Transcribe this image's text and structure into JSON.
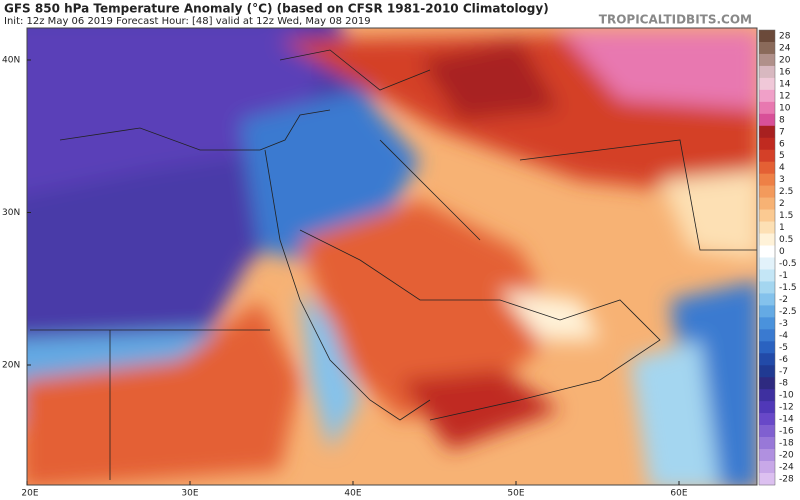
{
  "header": {
    "title": "GFS 850 hPa Temperature Anomaly (°C) (based on CFSR 1981-2010 Climatology)",
    "subtitle": "Init: 12z May 06 2019   Forecast Hour: [48]   valid at 12z Wed, May 08 2019",
    "brand": "TROPICALTIDBITS.COM"
  },
  "map": {
    "lat_ticks": [
      {
        "value": 40,
        "label": "40N"
      },
      {
        "value": 30,
        "label": "30N"
      },
      {
        "value": 20,
        "label": "20N"
      }
    ],
    "lon_ticks": [
      {
        "value": 20,
        "label": "20E"
      },
      {
        "value": 30,
        "label": "30E"
      },
      {
        "value": 40,
        "label": "40E"
      },
      {
        "value": 50,
        "label": "50E"
      },
      {
        "value": 60,
        "label": "60E"
      }
    ]
  },
  "colorbar": {
    "ticks": [
      28,
      24,
      20,
      16,
      14,
      12,
      10,
      8,
      7,
      6,
      5,
      4,
      3,
      2.5,
      2,
      1.5,
      1,
      0.5,
      0,
      -0.5,
      -1,
      -1.5,
      -2,
      -2.5,
      -3,
      -4,
      -5,
      -6,
      -7,
      -8,
      -10,
      -12,
      -14,
      -16,
      -18,
      -20,
      -24,
      -28
    ],
    "colors": [
      "#6b4a3a",
      "#8a6a5a",
      "#b0908a",
      "#d8b8c0",
      "#f0c8d8",
      "#f0a0c8",
      "#e878b0",
      "#d85098",
      "#a82020",
      "#c02a20",
      "#d44028",
      "#e46034",
      "#ee8046",
      "#f39a5c",
      "#f7b274",
      "#fbca92",
      "#fde0b4",
      "#fff2d8",
      "#ffffff",
      "#e2f2fa",
      "#c4e6f6",
      "#a4d6f0",
      "#84c2ec",
      "#64aae4",
      "#4a92dc",
      "#3a7ad0",
      "#2a62c0",
      "#224aa8",
      "#203a92",
      "#2e2a80",
      "#3e30a0",
      "#5038b8",
      "#6848c8",
      "#8060d0",
      "#9878d8",
      "#b090e0",
      "#c8a8e8",
      "#dcc0f0"
    ]
  }
}
